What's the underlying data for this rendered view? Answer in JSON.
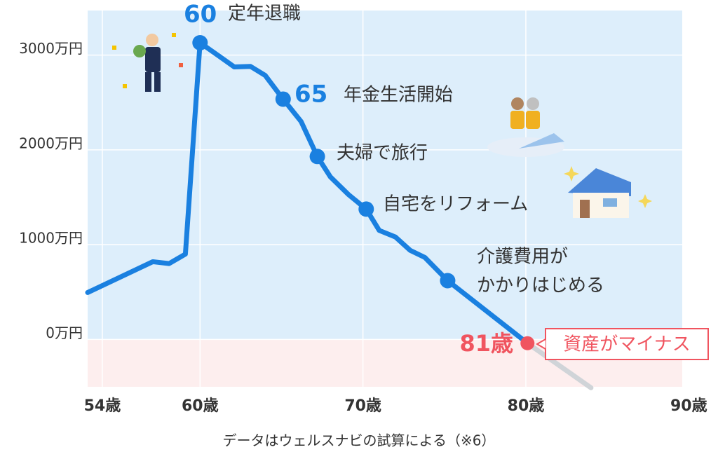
{
  "chart_data": {
    "type": "line",
    "xlim": [
      53.1,
      89.6
    ],
    "ylim": [
      -500,
      3470
    ],
    "xticks": [
      {
        "value": 54,
        "label": "54歳"
      },
      {
        "value": 60,
        "label": "60歳"
      },
      {
        "value": 70,
        "label": "70歳"
      },
      {
        "value": 80,
        "label": "80歳"
      },
      {
        "value": 90,
        "label": "90歳"
      }
    ],
    "yticks": [
      {
        "value": 0,
        "label": "0万円"
      },
      {
        "value": 1000,
        "label": "1000万円"
      },
      {
        "value": 2000,
        "label": "2000万円"
      },
      {
        "value": 3000,
        "label": "3000万円"
      }
    ],
    "grid": true,
    "series": [
      {
        "color": "#1a80e0",
        "marker_color": "#1a80e0",
        "end_color": "#f0545f",
        "x": [
          53.1,
          57.1,
          58.1,
          59.1,
          60,
          61.2,
          62.1,
          63.1,
          64.0,
          65.1,
          66.2,
          67.2,
          68.0,
          69.1,
          70.2,
          71.0,
          72.0,
          72.9,
          73.8,
          75.2,
          80.1
        ],
        "values": [
          495,
          820,
          800,
          900,
          3130,
          2985,
          2875,
          2880,
          2785,
          2535,
          2300,
          1930,
          1715,
          1530,
          1375,
          1150,
          1080,
          940,
          865,
          620,
          -40
        ]
      },
      {
        "color": "#d0d4d8",
        "x": [
          80.1,
          84.0
        ],
        "values": [
          -40,
          -510
        ]
      }
    ],
    "annotations": [
      {
        "number": "60",
        "text": "定年退職"
      },
      {
        "number": "65",
        "text": "年金生活開始"
      },
      {
        "text": "夫婦で旅行"
      },
      {
        "text": "自宅をリフォーム"
      },
      {
        "lines": [
          "介護費用が",
          "かかりはじめる"
        ]
      },
      {
        "number": "81歳",
        "text": "資産がマイナス"
      }
    ],
    "note": "データはウェルスナビの試算による（※6）"
  }
}
